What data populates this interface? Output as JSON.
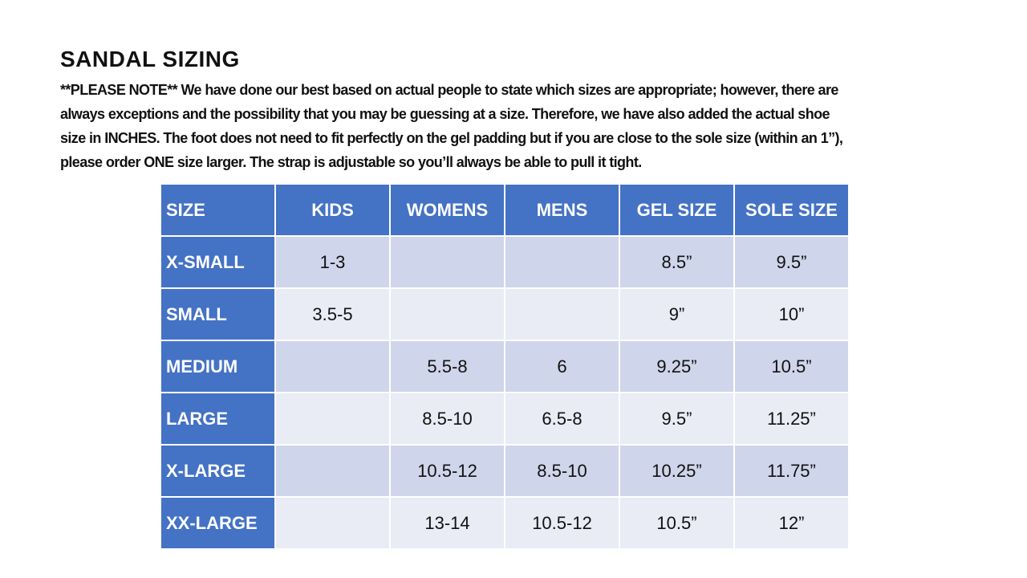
{
  "header": {
    "title": "SANDAL SIZING"
  },
  "note": {
    "lines": [
      "**PLEASE NOTE**  We have done our best based on actual people to state which sizes are appropriate; however, there are",
      "always exceptions and the possibility that you may be guessing at a size.  Therefore, we have also added the actual shoe",
      "size in INCHES.  The foot does not need to fit perfectly on the gel padding but if you are close to the sole size (within an 1”),",
      "please order ONE size larger.  The strap is adjustable so you’ll always be able to pull it tight."
    ]
  },
  "table": {
    "columns": [
      "SIZE",
      "KIDS",
      "WOMENS",
      "MENS",
      "GEL SIZE",
      "SOLE SIZE"
    ],
    "rows": [
      [
        "X-SMALL",
        "1-3",
        null,
        null,
        "8.5”",
        "9.5”"
      ],
      [
        "SMALL",
        "3.5-5",
        null,
        null,
        "9”",
        "10”"
      ],
      [
        "MEDIUM",
        null,
        "5.5-8",
        "6",
        "9.25”",
        "10.5”"
      ],
      [
        "LARGE",
        null,
        "8.5-10",
        "6.5-8",
        "9.5”",
        "11.25”"
      ],
      [
        "X-LARGE",
        null,
        "10.5-12",
        "8.5-10",
        "10.25”",
        "11.75”"
      ],
      [
        "XX-LARGE",
        null,
        "13-14",
        "10.5-12",
        "10.5”",
        "12”"
      ]
    ]
  }
}
